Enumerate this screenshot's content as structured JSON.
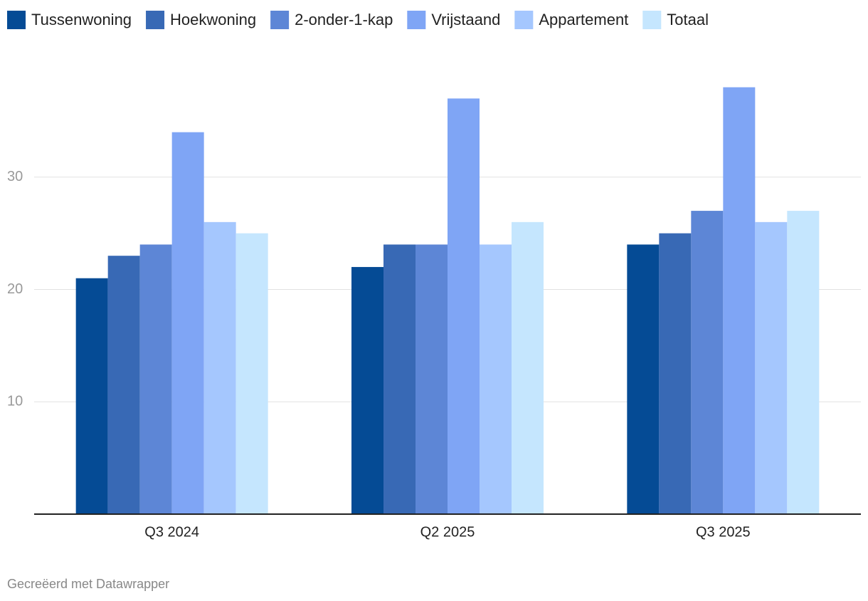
{
  "chart_data": {
    "type": "bar",
    "categories": [
      "Q3 2024",
      "Q2 2025",
      "Q3 2025"
    ],
    "series": [
      {
        "name": "Tussenwoning",
        "color": "#054b95",
        "values": [
          21,
          22,
          24
        ]
      },
      {
        "name": "Hoekwoning",
        "color": "#3869b5",
        "values": [
          23,
          24,
          25
        ]
      },
      {
        "name": "2-onder-1-kap",
        "color": "#5d86d6",
        "values": [
          24,
          24,
          27
        ]
      },
      {
        "name": "Vrijstaand",
        "color": "#7fa5f5",
        "values": [
          34,
          37,
          38
        ]
      },
      {
        "name": "Appartement",
        "color": "#a5c7fe",
        "values": [
          26,
          24,
          26
        ]
      },
      {
        "name": "Totaal",
        "color": "#c5e6fe",
        "values": [
          25,
          26,
          27
        ]
      }
    ],
    "ylim": [
      0,
      40
    ],
    "yticks": [
      10,
      20,
      30
    ],
    "grid": true,
    "footer": "Gecreëerd met Datawrapper"
  }
}
